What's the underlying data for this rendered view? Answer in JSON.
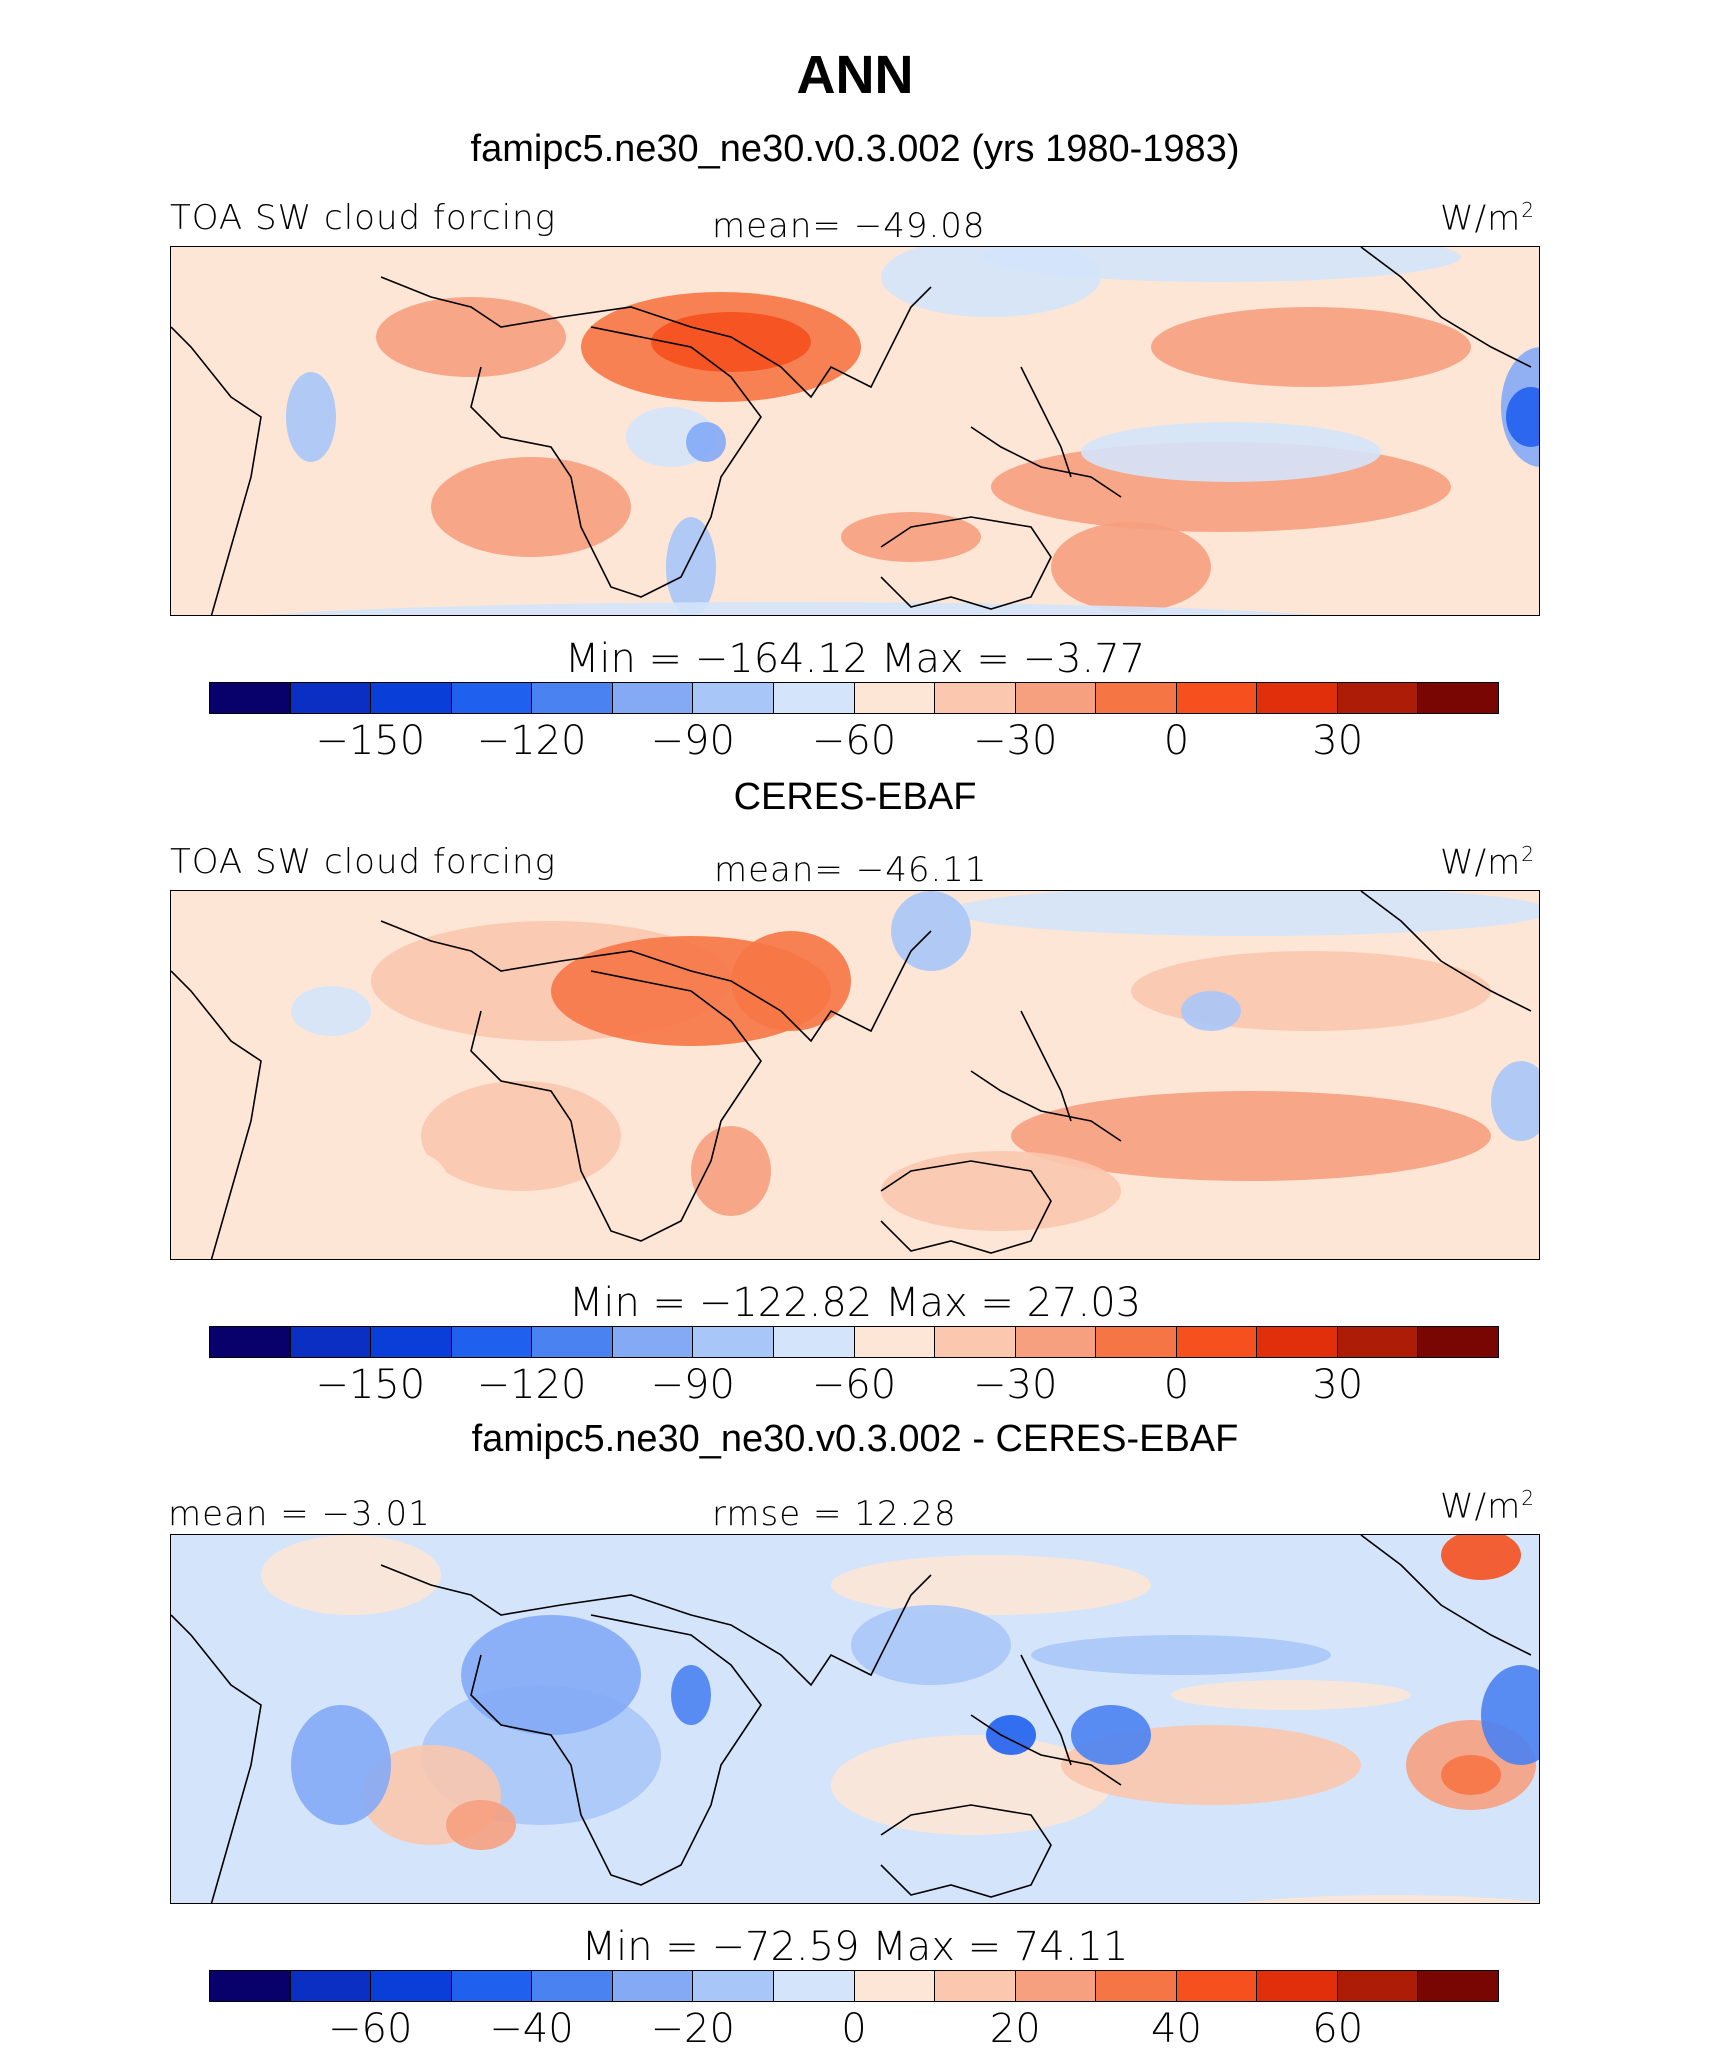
{
  "figure": {
    "title": "ANN",
    "subtitle": "famipc5.ne30_ne30.v0.3.002 (yrs 1980-1983)",
    "colors": [
      "#08006b",
      "#0a2fc2",
      "#0a3ed8",
      "#2060ee",
      "#4a82f2",
      "#84aaf6",
      "#a8c6f8",
      "#d4e4fb",
      "#fde6d6",
      "#fbc7ae",
      "#f6a07f",
      "#f67545",
      "#f5501e",
      "#e02f0a",
      "#ad1c06",
      "#7a0603"
    ]
  },
  "panels": [
    {
      "id": "model",
      "header": "",
      "left_label": "TOA SW cloud forcing",
      "center_label": "mean= −49.08",
      "units": "W/m",
      "units_sup": "2",
      "minmax": "Min = −164.12 Max = −3.77",
      "colorbar_ticks": [
        "−150",
        "−120",
        "−90",
        "−60",
        "−30",
        "0",
        "30"
      ]
    },
    {
      "id": "obs",
      "header": "CERES-EBAF",
      "left_label": "TOA SW cloud forcing",
      "center_label": "mean= −46.11",
      "units": "W/m",
      "units_sup": "2",
      "minmax": "Min = −122.82 Max = 27.03",
      "colorbar_ticks": [
        "−150",
        "−120",
        "−90",
        "−60",
        "−30",
        "0",
        "30"
      ]
    },
    {
      "id": "diff",
      "header": "famipc5.ne30_ne30.v0.3.002 - CERES-EBAF",
      "left_label": "mean = −3.01",
      "center_label": "rmse = 12.28",
      "units": "W/m",
      "units_sup": "2",
      "minmax": "Min = −72.59 Max = 74.11",
      "colorbar_ticks": [
        "−60",
        "−40",
        "−20",
        "0",
        "20",
        "40",
        "60"
      ]
    }
  ]
}
